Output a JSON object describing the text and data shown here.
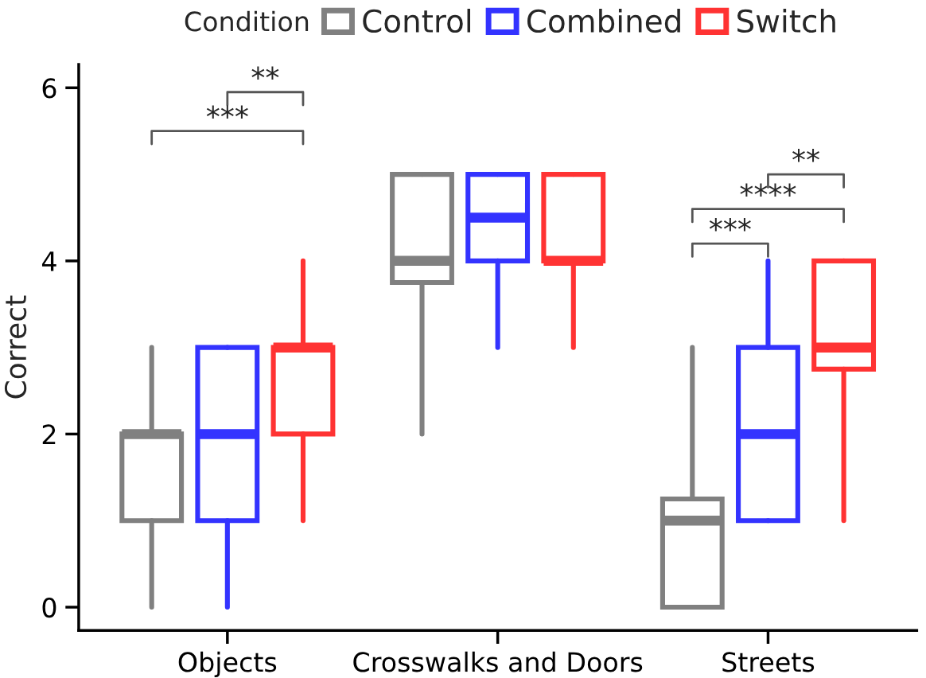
{
  "chart_data": {
    "type": "box",
    "ylabel": "Correct",
    "legend_title": "Condition",
    "legend": "top",
    "categories": [
      "Objects",
      "Crosswalks and Doors",
      "Streets"
    ],
    "ylim": [
      -0.27,
      6.27
    ],
    "yticks": [
      0,
      2,
      4,
      6
    ],
    "series": [
      {
        "name": "Control",
        "color": "#808080",
        "boxes": [
          {
            "low": 0,
            "q1": 1,
            "median": 2,
            "q3": 2,
            "high": 3
          },
          {
            "low": 2,
            "q1": 3.75,
            "median": 4,
            "q3": 5,
            "high": 5
          },
          {
            "low": 0,
            "q1": 0,
            "median": 1,
            "q3": 1.25,
            "high": 3
          }
        ]
      },
      {
        "name": "Combined",
        "color": "#3333ff",
        "boxes": [
          {
            "low": 0,
            "q1": 1,
            "median": 2,
            "q3": 3,
            "high": 3
          },
          {
            "low": 3,
            "q1": 4,
            "median": 4.5,
            "q3": 5,
            "high": 5
          },
          {
            "low": 1,
            "q1": 1,
            "median": 2,
            "q3": 3,
            "high": 4
          }
        ]
      },
      {
        "name": "Switch",
        "color": "#ff3333",
        "boxes": [
          {
            "low": 1,
            "q1": 2,
            "median": 3,
            "q3": 3,
            "high": 4
          },
          {
            "low": 3,
            "q1": 4,
            "median": 4,
            "q3": 5,
            "high": 5
          },
          {
            "low": 1,
            "q1": 2.75,
            "median": 3,
            "q3": 4,
            "high": 4
          }
        ]
      }
    ],
    "annotations": [
      "***",
      "**",
      "***",
      "****",
      "**"
    ]
  }
}
